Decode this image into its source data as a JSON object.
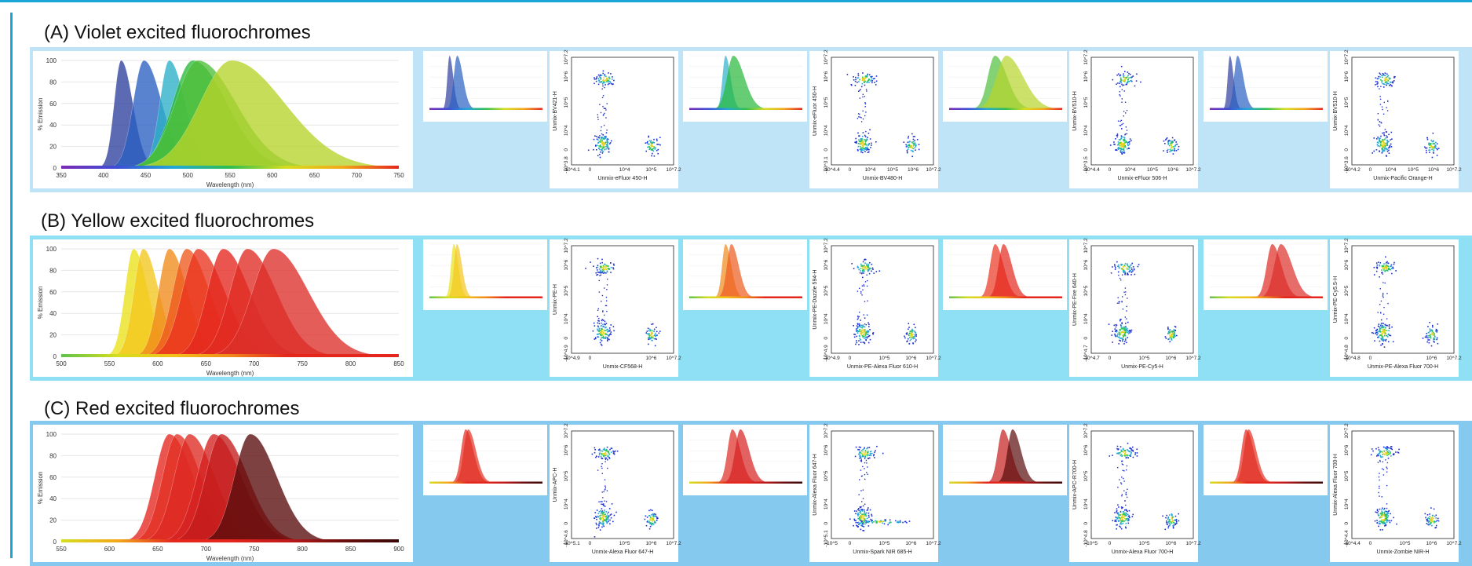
{
  "sections": [
    {
      "title": "(A)  Violet excited fluorochromes",
      "band_color": "#bfe3f7",
      "spectrum": {
        "ylabel": "% Emission",
        "xlabel": "Wavelength (nm)",
        "yticks": [
          "0",
          "20",
          "40",
          "60",
          "80",
          "100"
        ],
        "xticks": [
          "350",
          "400",
          "450",
          "500",
          "550",
          "600",
          "650",
          "700",
          "750"
        ],
        "xrange": [
          350,
          750
        ],
        "gradient": [
          "#7a2bb5",
          "#3d4fd6",
          "#22a7d8",
          "#2fbf4f",
          "#d6dd1e",
          "#f2a81a",
          "#e4261d"
        ]
      },
      "groups": [
        {
          "xlabel": "Unmix-eFluor 450-H",
          "ylabel": "Unmix-BV421-H",
          "xticks": [
            "-10^4.1",
            "0",
            "10^4",
            "10^5",
            "10^7.2"
          ],
          "yticks": [
            "10^7.2",
            "10^6",
            "10^5",
            "10^4",
            "0",
            "-10^3.8"
          ]
        },
        {
          "xlabel": "Unmix-BV480-H",
          "ylabel": "Unmix-eFluor 450-H",
          "xticks": [
            "-10^4.4",
            "0",
            "10^4",
            "10^5",
            "10^6",
            "10^7.2"
          ],
          "yticks": [
            "10^7.2",
            "10^6",
            "10^5",
            "10^4",
            "0",
            "-10^3.1"
          ]
        },
        {
          "xlabel": "Unmix-eFluor 506-H",
          "ylabel": "Unmix-BV510-H",
          "xticks": [
            "-10^4.4",
            "0",
            "10^4",
            "10^5",
            "10^6",
            "10^7.2"
          ],
          "yticks": [
            "10^7.2",
            "10^6",
            "10^5",
            "10^4",
            "0",
            "-10^3.5"
          ]
        },
        {
          "xlabel": "Unmix-Pacific Orange-H",
          "ylabel": "Unmix-BV510-H",
          "xticks": [
            "-10^4.2",
            "0",
            "10^4",
            "10^5",
            "10^6",
            "10^7.2"
          ],
          "yticks": [
            "10^7.2",
            "10^6",
            "10^5",
            "10^4",
            "0",
            "-10^3.6"
          ]
        }
      ]
    },
    {
      "title": "(B) Yellow excited fluorochromes",
      "band_color": "#8fe0f5",
      "spectrum": {
        "ylabel": "% Emission",
        "xlabel": "Wavelength (nm)",
        "yticks": [
          "0",
          "20",
          "40",
          "60",
          "80",
          "100"
        ],
        "xticks": [
          "500",
          "550",
          "600",
          "650",
          "700",
          "750",
          "800",
          "850"
        ],
        "xrange": [
          500,
          850
        ],
        "gradient": [
          "#5fc24a",
          "#d6dd1e",
          "#f2c21a",
          "#f08a1a",
          "#e4261d",
          "#e4261d",
          "#e4261d"
        ]
      },
      "groups": [
        {
          "xlabel": "Unmix-CF568-H",
          "ylabel": "Unmix-PE-H",
          "xticks": [
            "-10^4.9",
            "0",
            "10^6",
            "10^7.2"
          ],
          "yticks": [
            "10^7.2",
            "10^6",
            "10^5",
            "10^4",
            "0",
            "-10^4.9"
          ]
        },
        {
          "xlabel": "Unmix-PE-Alexa Fluor 610-H",
          "ylabel": "Unmix-PE-Dazzle 594-H",
          "xticks": [
            "-10^4.9",
            "0",
            "10^5",
            "10^6",
            "10^7.2"
          ],
          "yticks": [
            "10^7.2",
            "10^6",
            "10^5",
            "10^4",
            "0",
            "-10^4.9"
          ]
        },
        {
          "xlabel": "Unmix-PE-Cy5-H",
          "ylabel": "Unmix-PE-Fire 640-H",
          "xticks": [
            "-10^4.7",
            "0",
            "10^5",
            "10^6",
            "10^7.2"
          ],
          "yticks": [
            "10^7.2",
            "10^6",
            "10^5",
            "10^4",
            "0",
            "-10^4.7"
          ]
        },
        {
          "xlabel": "Unmix-PE-Alexa Fluor 700-H",
          "ylabel": "Unmix-PE-Cy5.5-H",
          "xticks": [
            "-10^4.8",
            "0",
            "10^6",
            "10^7.2"
          ],
          "yticks": [
            "10^7.2",
            "10^6",
            "10^5",
            "10^4",
            "0",
            "-10^4.8"
          ]
        }
      ]
    },
    {
      "title": "(C) Red excited fluorochromes",
      "band_color": "#86c9ef",
      "spectrum": {
        "ylabel": "% Emission",
        "xlabel": "Wavelength (nm)",
        "yticks": [
          "0",
          "20",
          "40",
          "60",
          "80",
          "100"
        ],
        "xticks": [
          "550",
          "600",
          "650",
          "700",
          "750",
          "800",
          "850",
          "900"
        ],
        "xrange": [
          550,
          900
        ],
        "gradient": [
          "#d6dd1e",
          "#f2a81a",
          "#e4261d",
          "#e4261d",
          "#c01a1a",
          "#6a0e0e",
          "#3a0606"
        ]
      },
      "groups": [
        {
          "xlabel": "Unmix-Alexa Fluor 647-H",
          "ylabel": "Unmix-APC-H",
          "xticks": [
            "-10^5.1",
            "0",
            "10^5",
            "10^6",
            "10^7.2"
          ],
          "yticks": [
            "10^7.2",
            "10^6",
            "10^5",
            "10^4",
            "0",
            "-10^4.6"
          ]
        },
        {
          "xlabel": "Unmix-Spark NIR 685-H",
          "ylabel": "Unmix-Alexa Fluor 647-H",
          "xticks": [
            "-10^5",
            "0",
            "10^5",
            "10^6",
            "10^7.2"
          ],
          "yticks": [
            "10^7.2",
            "10^6",
            "10^5",
            "10^4",
            "0",
            "-10^5.1"
          ]
        },
        {
          "xlabel": "Unmix-Alexa Fluor 700-H",
          "ylabel": "Unmix-APC-R700-H",
          "xticks": [
            "-10^5",
            "0",
            "10^5",
            "10^6",
            "10^7.2"
          ],
          "yticks": [
            "10^7.2",
            "10^6",
            "10^5",
            "10^4",
            "0",
            "-10^4.8"
          ]
        },
        {
          "xlabel": "Unmix-Zombie NIR-H",
          "ylabel": "Unmix-Alexa Fluor 700-H",
          "xticks": [
            "-10^4.4",
            "0",
            "10^5",
            "10^6",
            "10^7.2"
          ],
          "yticks": [
            "10^7.2",
            "10^6",
            "10^5",
            "10^4",
            "0",
            "-10^4.4"
          ]
        }
      ]
    }
  ],
  "chart_data": [
    {
      "type": "area",
      "ylabel": "% Emission",
      "xlabel": "Wavelength (nm)",
      "xlim": [
        350,
        750
      ],
      "ylim": [
        0,
        100
      ],
      "series": [
        {
          "peak": 421,
          "width": 11,
          "color": "#2e3f9e"
        },
        {
          "peak": 448,
          "width": 17,
          "color": "#2a5fc2"
        },
        {
          "peak": 478,
          "width": 15,
          "color": "#2bb0c8"
        },
        {
          "peak": 506,
          "width": 32,
          "color": "#27b83a"
        },
        {
          "peak": 512,
          "width": 36,
          "color": "#4fbf3a"
        },
        {
          "peak": 552,
          "width": 50,
          "color": "#b6d42a"
        }
      ]
    },
    {
      "type": "area",
      "ylabel": "% Emission",
      "xlabel": "Wavelength (nm)",
      "xlim": [
        500,
        850
      ],
      "ylim": [
        0,
        100
      ],
      "series": [
        {
          "peak": 575,
          "width": 12,
          "color": "#e9e21a"
        },
        {
          "peak": 585,
          "width": 13,
          "color": "#f3c61e"
        },
        {
          "peak": 612,
          "width": 15,
          "color": "#f08a1a"
        },
        {
          "peak": 630,
          "width": 19,
          "color": "#ee5a1e"
        },
        {
          "peak": 642,
          "width": 22,
          "color": "#e9331e"
        },
        {
          "peak": 668,
          "width": 22,
          "color": "#e4261d"
        },
        {
          "peak": 693,
          "width": 24,
          "color": "#e02a22"
        },
        {
          "peak": 720,
          "width": 29,
          "color": "#dc2f2a"
        }
      ]
    },
    {
      "type": "area",
      "ylabel": "% Emission",
      "xlabel": "Wavelength (nm)",
      "xlim": [
        550,
        900
      ],
      "ylim": [
        0,
        100
      ],
      "series": [
        {
          "peak": 662,
          "width": 20,
          "color": "#e4261d"
        },
        {
          "peak": 670,
          "width": 20,
          "color": "#e33024"
        },
        {
          "peak": 683,
          "width": 21,
          "color": "#de2a22"
        },
        {
          "peak": 708,
          "width": 23,
          "color": "#d52020"
        },
        {
          "peak": 716,
          "width": 22,
          "color": "#c41c1c"
        },
        {
          "peak": 746,
          "width": 22,
          "color": "#5a0c0c"
        }
      ]
    }
  ]
}
